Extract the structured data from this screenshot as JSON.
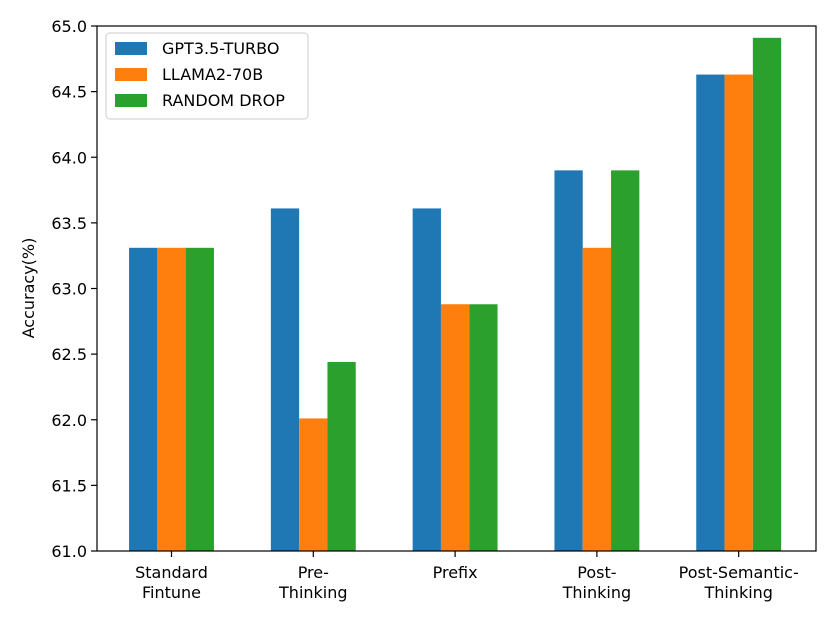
{
  "chart_data": {
    "type": "bar",
    "title": "",
    "xlabel": "",
    "ylabel": "Accuracy(%)",
    "ylim": [
      61.0,
      65.0
    ],
    "yticks": [
      "61.0",
      "61.5",
      "62.0",
      "62.5",
      "63.0",
      "63.5",
      "64.0",
      "64.5",
      "65.0"
    ],
    "categories": [
      [
        "Standard",
        "Fintune"
      ],
      [
        "Pre-",
        "Thinking"
      ],
      [
        "Prefix"
      ],
      [
        "Post-",
        "Thinking"
      ],
      [
        "Post-Semantic-",
        "Thinking"
      ]
    ],
    "series": [
      {
        "name": "GPT3.5-TURBO",
        "color": "#1f77b4",
        "values": [
          63.31,
          63.61,
          63.61,
          63.9,
          64.63
        ]
      },
      {
        "name": "LLAMA2-70B",
        "color": "#ff7f0e",
        "values": [
          63.31,
          62.01,
          62.88,
          63.31,
          64.63
        ]
      },
      {
        "name": "RANDOM DROP",
        "color": "#2ca02c",
        "values": [
          63.31,
          62.44,
          62.88,
          63.9,
          64.91
        ]
      }
    ],
    "legend_position": "top-left",
    "grid": false
  }
}
